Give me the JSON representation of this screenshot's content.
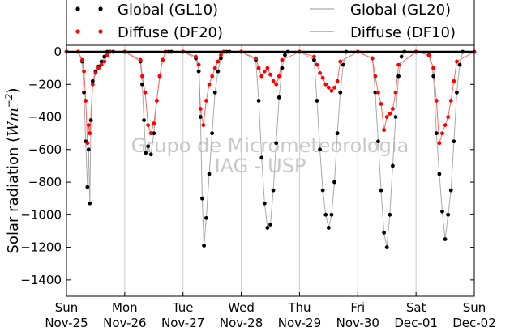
{
  "chart_data": {
    "type": "scatter",
    "title": "",
    "ylabel_main": "Solar radiation (",
    "ylabel_unit": "Wm",
    "ylabel_exp": "−2",
    "ylabel_close": ")",
    "ylim": [
      -1500,
      0
    ],
    "yticks": [
      0,
      -200,
      -400,
      -600,
      -800,
      -1000,
      -1200,
      -1400
    ],
    "ytick_labels": [
      "0",
      "−200",
      "−400",
      "−600",
      "−800",
      "−1000",
      "−1200",
      "−1400"
    ],
    "xlim": [
      0,
      7
    ],
    "xticks": [
      {
        "x": 0,
        "day": "Sun",
        "date": "Nov-25"
      },
      {
        "x": 1,
        "day": "Mon",
        "date": "Nov-26"
      },
      {
        "x": 2,
        "day": "Tue",
        "date": "Nov-27"
      },
      {
        "x": 3,
        "day": "Wed",
        "date": "Nov-28"
      },
      {
        "x": 4,
        "day": "Thu",
        "date": "Nov-29"
      },
      {
        "x": 5,
        "day": "Fri",
        "date": "Nov-30"
      },
      {
        "x": 6,
        "day": "Sat",
        "date": "Dec-01"
      },
      {
        "x": 7,
        "day": "Sun",
        "date": "Dec-02"
      }
    ],
    "grid": "vertical",
    "legend_position": "top",
    "watermark": [
      "Grupo de Micrometeorologia",
      "IAG - USP"
    ],
    "legend": [
      {
        "name": "Global (GL10)",
        "style": "dots",
        "color": "#000000"
      },
      {
        "name": "Global (GL20)",
        "style": "line",
        "color": "#aaaaaa"
      },
      {
        "name": "Diffuse (DF20)",
        "style": "dots",
        "color": "#ff0000"
      },
      {
        "name": "Diffuse (DF10)",
        "style": "line",
        "color": "#ff6666"
      }
    ],
    "series": [
      {
        "name": "Global (GL10)",
        "color": "#000000",
        "x": [
          0.0,
          0.2,
          0.27,
          0.3,
          0.33,
          0.36,
          0.38,
          0.4,
          0.42,
          0.45,
          0.5,
          0.55,
          0.6,
          0.65,
          0.7,
          0.75,
          0.8,
          1.0,
          1.27,
          1.3,
          1.33,
          1.36,
          1.4,
          1.45,
          1.5,
          1.55,
          1.6,
          1.65,
          1.7,
          1.75,
          1.8,
          2.0,
          2.22,
          2.27,
          2.3,
          2.33,
          2.36,
          2.4,
          2.45,
          2.5,
          2.55,
          2.6,
          2.65,
          2.7,
          2.75,
          2.8,
          3.0,
          3.25,
          3.3,
          3.35,
          3.4,
          3.45,
          3.5,
          3.55,
          3.6,
          3.65,
          3.7,
          3.75,
          3.8,
          4.0,
          4.25,
          4.3,
          4.35,
          4.4,
          4.45,
          4.5,
          4.55,
          4.6,
          4.65,
          4.7,
          4.75,
          4.8,
          5.0,
          5.25,
          5.3,
          5.35,
          5.4,
          5.45,
          5.5,
          5.55,
          5.6,
          5.65,
          5.7,
          5.75,
          5.8,
          6.0,
          6.22,
          6.3,
          6.35,
          6.4,
          6.45,
          6.5,
          6.55,
          6.6,
          6.65,
          6.7,
          6.75,
          6.8,
          7.0
        ],
        "y": [
          0,
          0,
          -60,
          -250,
          -550,
          -830,
          -600,
          -930,
          -420,
          -180,
          -120,
          -90,
          -60,
          -30,
          0,
          0,
          0,
          0,
          -60,
          -200,
          -420,
          -620,
          -580,
          -630,
          -500,
          -300,
          -150,
          -50,
          0,
          0,
          0,
          0,
          -40,
          -120,
          -400,
          -900,
          -1190,
          -1020,
          -750,
          -500,
          -250,
          -120,
          -40,
          0,
          0,
          0,
          0,
          -50,
          -300,
          -650,
          -930,
          -1080,
          -1060,
          -850,
          -560,
          -280,
          -100,
          -20,
          0,
          0,
          -50,
          -300,
          -600,
          -850,
          -1000,
          -1080,
          -1000,
          -800,
          -500,
          -250,
          -80,
          0,
          0,
          -40,
          -250,
          -550,
          -850,
          -1110,
          -1200,
          -1000,
          -700,
          -400,
          -150,
          -30,
          0,
          0,
          -20,
          -150,
          -500,
          -750,
          -980,
          -1150,
          -1000,
          -850,
          -550,
          -250,
          -80,
          0,
          0
        ]
      },
      {
        "name": "Diffuse (DF20)",
        "color": "#ff0000",
        "x": [
          0.0,
          0.2,
          0.27,
          0.3,
          0.33,
          0.36,
          0.38,
          0.4,
          0.45,
          0.5,
          0.55,
          0.6,
          0.65,
          0.7,
          0.75,
          1.0,
          1.27,
          1.3,
          1.35,
          1.4,
          1.45,
          1.5,
          1.55,
          1.6,
          1.65,
          1.7,
          2.0,
          2.22,
          2.27,
          2.3,
          2.35,
          2.4,
          2.45,
          2.5,
          2.55,
          2.6,
          2.65,
          2.7,
          3.0,
          3.25,
          3.3,
          3.35,
          3.4,
          3.45,
          3.5,
          3.55,
          3.6,
          3.65,
          3.7,
          4.0,
          4.25,
          4.3,
          4.35,
          4.4,
          4.45,
          4.5,
          4.55,
          4.6,
          4.65,
          4.7,
          5.0,
          5.25,
          5.3,
          5.35,
          5.4,
          5.45,
          5.5,
          5.55,
          5.6,
          5.65,
          5.7,
          6.0,
          6.22,
          6.3,
          6.35,
          6.4,
          6.45,
          6.5,
          6.55,
          6.6,
          6.65,
          6.7,
          7.0
        ],
        "y": [
          0,
          0,
          -50,
          -120,
          -300,
          -560,
          -450,
          -500,
          -200,
          -130,
          -100,
          -80,
          -60,
          -20,
          0,
          0,
          -50,
          -150,
          -250,
          -450,
          -500,
          -440,
          -300,
          -150,
          -50,
          0,
          0,
          -30,
          -80,
          -350,
          -450,
          -300,
          -200,
          -150,
          -100,
          -60,
          -20,
          0,
          0,
          -40,
          -100,
          -150,
          -120,
          -100,
          -140,
          -180,
          -200,
          -150,
          -50,
          0,
          -30,
          -80,
          -130,
          -160,
          -200,
          -220,
          -240,
          -220,
          -180,
          -60,
          0,
          -40,
          -150,
          -250,
          -320,
          -480,
          -400,
          -380,
          -350,
          -250,
          -80,
          0,
          -20,
          -100,
          -300,
          -560,
          -500,
          -450,
          -400,
          -300,
          -180,
          -60,
          0
        ]
      }
    ]
  }
}
